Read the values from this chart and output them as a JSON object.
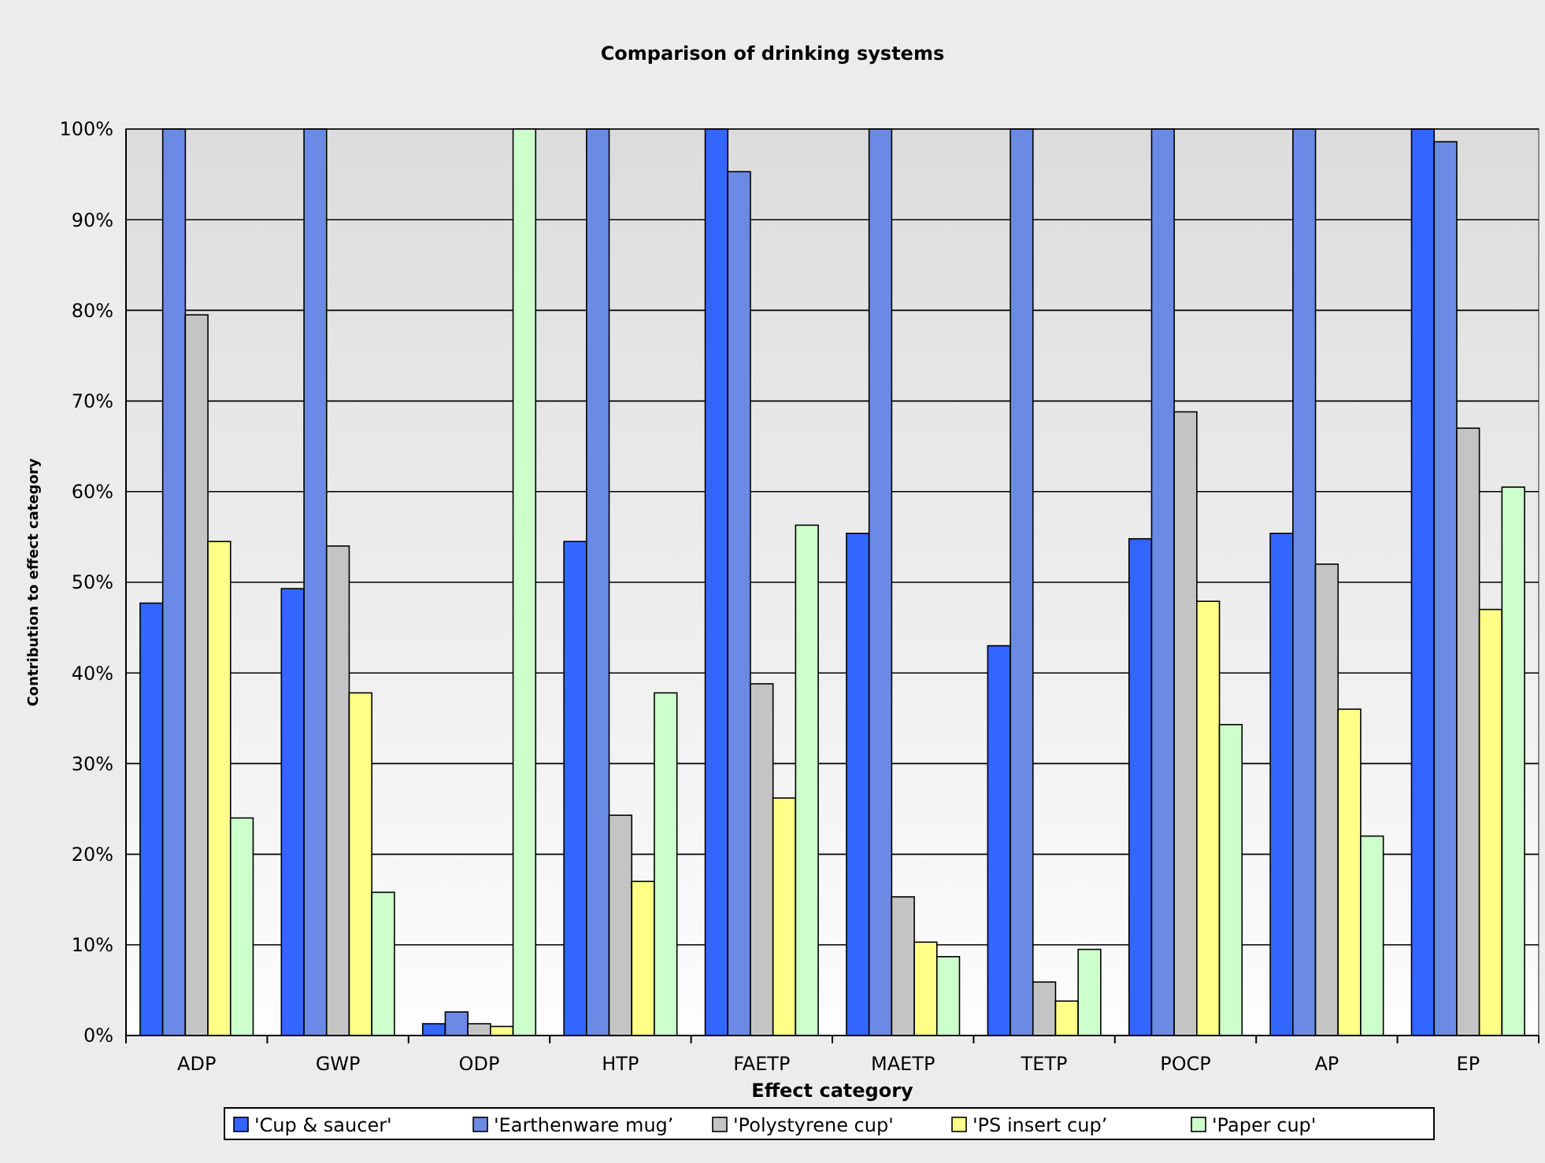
{
  "chart_data": {
    "type": "bar",
    "title": "Comparison of drinking systems",
    "xlabel": "Effect category",
    "ylabel": "Contribution to effect category",
    "categories": [
      "ADP",
      "GWP",
      "ODP",
      "HTP",
      "FAETP",
      "MAETP",
      "TETP",
      "POCP",
      "AP",
      "EP"
    ],
    "series": [
      {
        "name": "'Cup & saucer'",
        "color": "#3366ff",
        "values": [
          47.7,
          49.3,
          1.3,
          54.5,
          100,
          55.4,
          43,
          54.8,
          55.4,
          100
        ]
      },
      {
        "name": "'Earthenware mug’",
        "color": "#6a8ae6",
        "values": [
          100,
          100,
          2.6,
          100,
          95.3,
          100,
          100,
          100,
          100,
          98.6
        ]
      },
      {
        "name": "'Polystyrene cup'",
        "color": "#c4c4c4",
        "values": [
          79.5,
          54,
          1.3,
          24.3,
          38.8,
          15.3,
          5.9,
          68.8,
          52,
          67
        ]
      },
      {
        "name": "'PS insert cup’",
        "color": "#ffff88",
        "values": [
          54.5,
          37.8,
          1,
          17,
          26.2,
          10.3,
          3.8,
          47.9,
          36,
          47
        ]
      },
      {
        "name": "'Paper cup'",
        "color": "#ccffcc",
        "values": [
          24,
          15.8,
          100,
          37.8,
          56.3,
          8.7,
          9.5,
          34.3,
          22,
          60.5
        ]
      }
    ],
    "ylim": [
      0,
      100
    ],
    "yticks": [
      {
        "value": 0,
        "label": "0%"
      },
      {
        "value": 10,
        "label": "10%"
      },
      {
        "value": 20,
        "label": "20%"
      },
      {
        "value": 30,
        "label": "30%"
      },
      {
        "value": 40,
        "label": "40%"
      },
      {
        "value": 50,
        "label": "50%"
      },
      {
        "value": 60,
        "label": "60%"
      },
      {
        "value": 70,
        "label": "70%"
      },
      {
        "value": 80,
        "label": "80%"
      },
      {
        "value": 90,
        "label": "90%"
      },
      {
        "value": 100,
        "label": "100%"
      }
    ],
    "grid": "y",
    "legend": "bottom"
  }
}
